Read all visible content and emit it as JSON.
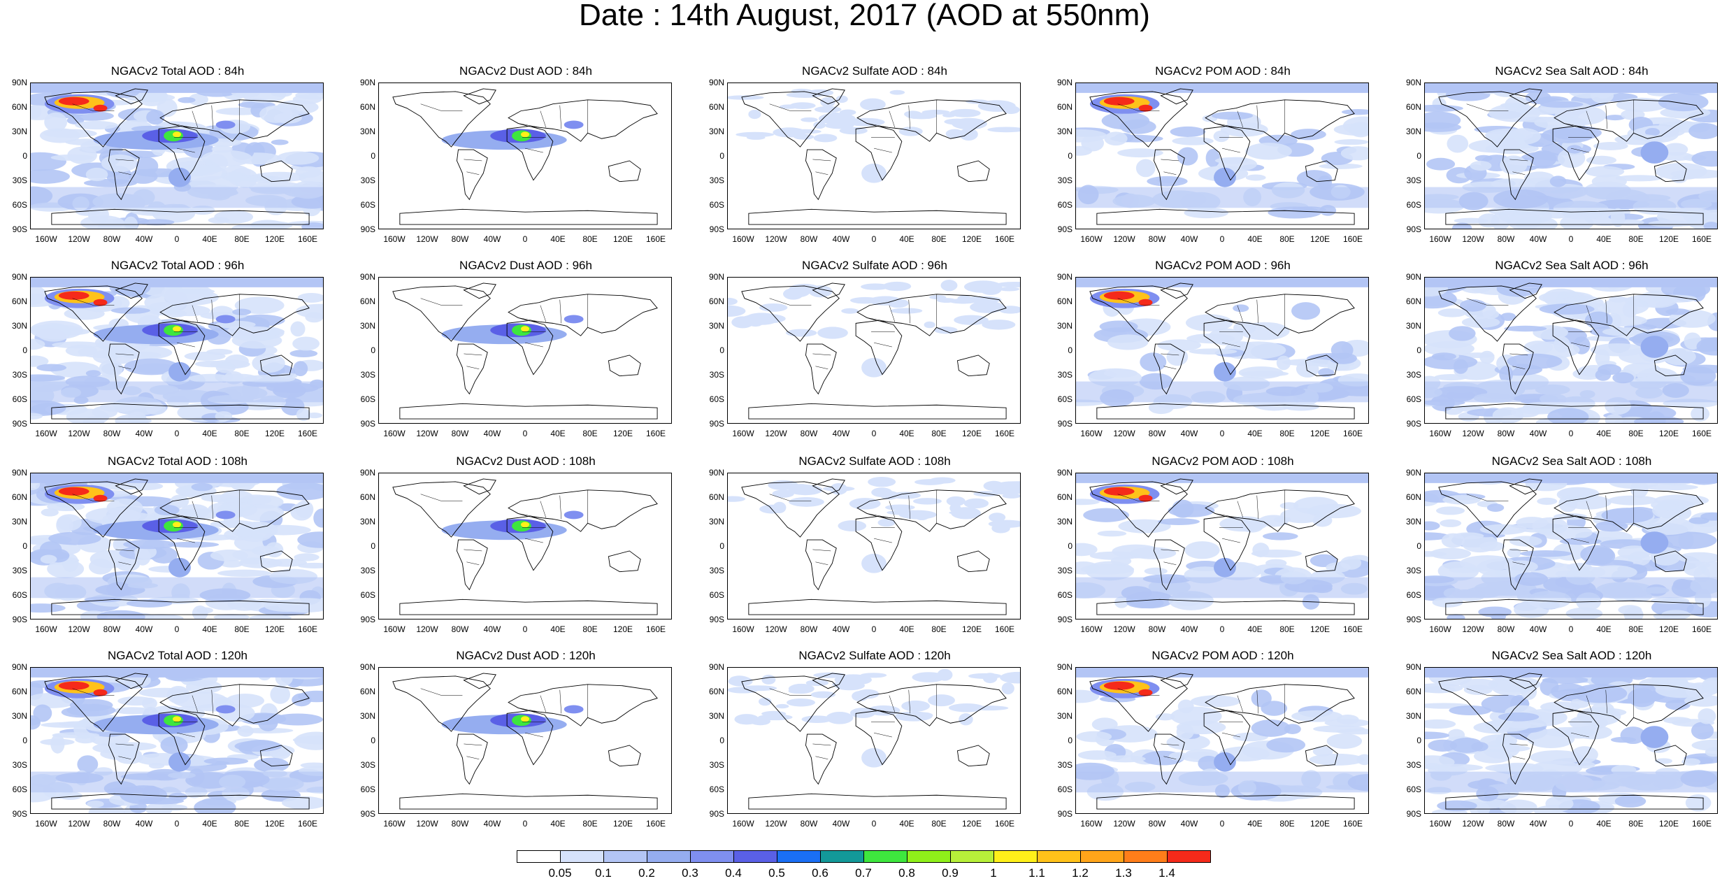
{
  "title": "Date : 14th August, 2017 (AOD at 550nm)",
  "lat_labels": [
    "90N",
    "60N",
    "30N",
    "0",
    "30S",
    "60S",
    "90S"
  ],
  "lon_labels": [
    "160W",
    "120W",
    "80W",
    "40W",
    "0",
    "40E",
    "80E",
    "120E",
    "160E"
  ],
  "panels": [
    {
      "title": "NGACv2 Total AOD : 84h",
      "species": "total"
    },
    {
      "title": "NGACv2 Dust AOD : 84h",
      "species": "dust"
    },
    {
      "title": "NGACv2 Sulfate AOD : 84h",
      "species": "sulfate"
    },
    {
      "title": "NGACv2 POM AOD : 84h",
      "species": "pom"
    },
    {
      "title": "NGACv2 Sea Salt AOD : 84h",
      "species": "seasalt"
    },
    {
      "title": "NGACv2 Total AOD : 96h",
      "species": "total"
    },
    {
      "title": "NGACv2 Dust AOD : 96h",
      "species": "dust"
    },
    {
      "title": "NGACv2 Sulfate AOD : 96h",
      "species": "sulfate"
    },
    {
      "title": "NGACv2 POM AOD : 96h",
      "species": "pom"
    },
    {
      "title": "NGACv2 Sea Salt AOD : 96h",
      "species": "seasalt"
    },
    {
      "title": "NGACv2 Total AOD : 108h",
      "species": "total"
    },
    {
      "title": "NGACv2 Dust AOD : 108h",
      "species": "dust"
    },
    {
      "title": "NGACv2 Sulfate AOD : 108h",
      "species": "sulfate"
    },
    {
      "title": "NGACv2 POM AOD : 108h",
      "species": "pom"
    },
    {
      "title": "NGACv2 Sea Salt AOD : 108h",
      "species": "seasalt"
    },
    {
      "title": "NGACv2 Total AOD : 120h",
      "species": "total"
    },
    {
      "title": "NGACv2 Dust AOD : 120h",
      "species": "dust"
    },
    {
      "title": "NGACv2 Sulfate AOD : 120h",
      "species": "sulfate"
    },
    {
      "title": "NGACv2 POM AOD : 120h",
      "species": "pom"
    },
    {
      "title": "NGACv2 Sea Salt  AOD : 120h",
      "species": "seasalt"
    }
  ],
  "colorbar": {
    "labels": [
      "0.05",
      "0.1",
      "0.2",
      "0.3",
      "0.4",
      "0.5",
      "0.6",
      "0.7",
      "0.8",
      "0.9",
      "1",
      "1.1",
      "1.2",
      "1.3",
      "1.4"
    ],
    "colors": [
      "#ffffff",
      "#d6e2fb",
      "#b3c5f5",
      "#95adf0",
      "#7f8ff0",
      "#5a60e6",
      "#1a6ff5",
      "#139999",
      "#3ee63e",
      "#8ff01a",
      "#b7f03a",
      "#fff01a",
      "#ffc21a",
      "#ffa51a",
      "#ff7e1a",
      "#f52a1a"
    ]
  }
}
